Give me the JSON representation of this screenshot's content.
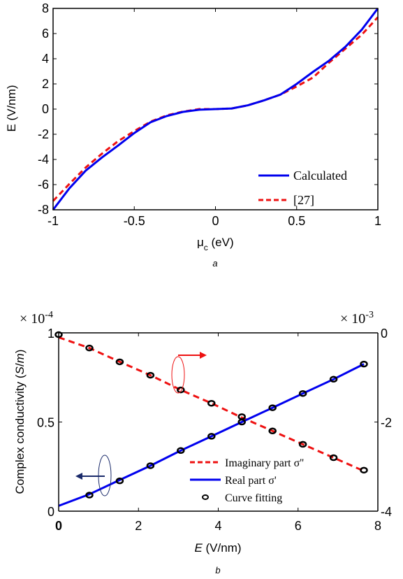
{
  "chart_data": [
    {
      "type": "line",
      "caption": "a",
      "xlabel_main": "μ",
      "xlabel_sub": "c",
      "xlabel_unit": " (eV)",
      "ylabel": "E (V/nm)",
      "xlim": [
        -1,
        1
      ],
      "ylim": [
        -8,
        8
      ],
      "xticks": [
        -1,
        -0.5,
        0,
        0.5,
        1
      ],
      "xtick_labels": [
        "-1",
        "-0.5",
        "0",
        "0.5",
        "1"
      ],
      "yticks": [
        -8,
        -6,
        -4,
        -2,
        0,
        2,
        4,
        6,
        8
      ],
      "ytick_labels": [
        "-8",
        "-6",
        "-4",
        "-2",
        "0",
        "2",
        "4",
        "6",
        "8"
      ],
      "legend_position": "bottom-right",
      "series": [
        {
          "name": "Calculated",
          "color": "#0000ee",
          "style": "solid",
          "x": [
            -1.0,
            -0.9,
            -0.8,
            -0.7,
            -0.6,
            -0.5,
            -0.4,
            -0.3,
            -0.2,
            -0.1,
            0.0,
            0.1,
            0.2,
            0.3,
            0.4,
            0.5,
            0.6,
            0.7,
            0.8,
            0.9,
            1.0
          ],
          "y": [
            -8.0,
            -6.3,
            -4.9,
            -3.85,
            -2.9,
            -1.9,
            -1.05,
            -0.55,
            -0.22,
            -0.05,
            0.0,
            0.05,
            0.3,
            0.7,
            1.15,
            2.0,
            2.95,
            3.85,
            4.95,
            6.3,
            8.0
          ]
        },
        {
          "name": "[27]",
          "color": "#ee1111",
          "style": "dashed",
          "x": [
            -1.0,
            -0.9,
            -0.8,
            -0.7,
            -0.6,
            -0.5,
            -0.4,
            -0.3,
            -0.2,
            -0.1,
            0.0,
            0.1,
            0.2,
            0.3,
            0.4,
            0.5,
            0.6,
            0.7,
            0.8,
            0.9,
            1.0
          ],
          "y": [
            -7.3,
            -5.95,
            -4.65,
            -3.55,
            -2.55,
            -1.75,
            -1.0,
            -0.5,
            -0.2,
            0.0,
            0.0,
            0.05,
            0.3,
            0.7,
            1.15,
            1.8,
            2.5,
            3.7,
            4.8,
            5.9,
            7.3
          ]
        }
      ]
    },
    {
      "type": "line",
      "caption": "b",
      "xlabel_italic": "E",
      "xlabel_unit": " (V/nm)",
      "ylabel_prefix": "Complex conductivity (",
      "ylabel_italic": "S",
      "ylabel_mid": "/",
      "ylabel_italic2": "m",
      "ylabel_suffix": ")",
      "left_multiplier_base": "× 10",
      "left_multiplier_exp": "-4",
      "right_multiplier_base": "× 10",
      "right_multiplier_exp": "-3",
      "xlim": [
        0,
        8
      ],
      "ylim_left": [
        0,
        1
      ],
      "ylim_right": [
        -4,
        0
      ],
      "xticks": [
        0,
        2,
        4,
        6,
        8
      ],
      "xtick_labels": [
        "0",
        "2",
        "4",
        "6",
        "8"
      ],
      "yticks_left": [
        0,
        0.5,
        1
      ],
      "ytick_labels_left": [
        "0",
        "0.5",
        "1"
      ],
      "yticks_right": [
        0,
        -2,
        -4
      ],
      "ytick_labels_right": [
        "0",
        "-2",
        "-4"
      ],
      "legend_position": "bottom-right",
      "series": [
        {
          "name": "Imaginary part σ''",
          "axis": "right",
          "color": "#ee1111",
          "style": "dashed",
          "x": [
            0.0,
            0.77,
            1.53,
            2.3,
            3.06,
            3.83,
            4.59,
            5.36,
            6.12,
            6.89,
            7.65
          ],
          "y": [
            -0.1,
            -0.34,
            -0.65,
            -0.95,
            -1.28,
            -1.58,
            -1.9,
            -2.2,
            -2.5,
            -2.8,
            -3.1
          ]
        },
        {
          "name": "Real part σ'",
          "axis": "left",
          "color": "#0000ee",
          "style": "solid",
          "x": [
            0.0,
            0.77,
            1.53,
            2.3,
            3.06,
            3.83,
            4.59,
            5.36,
            6.12,
            6.89,
            7.65
          ],
          "y": [
            0.03,
            0.095,
            0.175,
            0.255,
            0.34,
            0.42,
            0.5,
            0.58,
            0.66,
            0.74,
            0.825
          ]
        },
        {
          "name": "Curve fitting",
          "type": "scatter",
          "color": "#000000",
          "points_left": {
            "x": [
              0.0,
              0.77,
              1.53,
              2.3,
              3.06,
              3.83,
              4.59,
              5.36,
              6.12,
              6.89,
              7.65
            ],
            "y": [
              0.99,
              0.09,
              0.17,
              0.255,
              0.34,
              0.42,
              0.5,
              0.58,
              0.66,
              0.74,
              0.825
            ]
          },
          "points_right": {
            "x": [
              0.77,
              1.53,
              2.3,
              3.06,
              3.83,
              4.59,
              5.36,
              6.12,
              6.89,
              7.65
            ],
            "y": [
              -0.34,
              -0.65,
              -0.95,
              -1.28,
              -1.58,
              -1.88,
              -2.2,
              -2.5,
              -2.8,
              -3.08
            ]
          }
        }
      ]
    }
  ]
}
